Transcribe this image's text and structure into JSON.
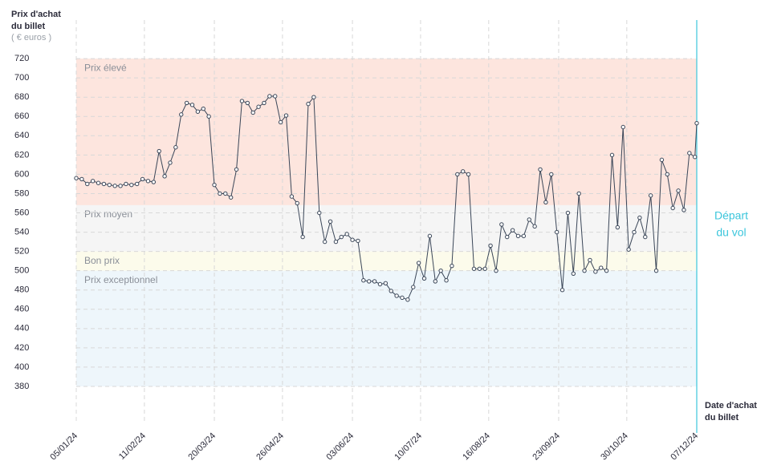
{
  "chart_data": {
    "type": "line",
    "title": [
      "Prix d'achat",
      "du billet"
    ],
    "subtitle": "( € euros )",
    "x_label": [
      "Date d'achat",
      "du billet"
    ],
    "color": "#3a4658",
    "ylim": [
      375,
      760
    ],
    "yticks": [
      380,
      400,
      420,
      440,
      460,
      480,
      500,
      520,
      540,
      560,
      580,
      600,
      620,
      640,
      660,
      680,
      700,
      720
    ],
    "xlim": [
      "05/01/24",
      "07/12/24"
    ],
    "xticks": [
      "05/01/24",
      "11/02/24",
      "20/03/24",
      "26/04/24",
      "03/06/24",
      "10/07/24",
      "16/08/24",
      "23/09/24",
      "30/10/24",
      "07/12/24"
    ],
    "grid": true,
    "bands": [
      {
        "label": "Prix élevé",
        "from": 568,
        "to": 720,
        "color": "#fde5de"
      },
      {
        "label": "Prix moyen",
        "from": 520,
        "to": 568,
        "color": "#f5f5f5"
      },
      {
        "label": "Bon prix",
        "from": 500,
        "to": 520,
        "color": "#fcfbeb"
      },
      {
        "label": "Prix exceptionnel",
        "from": 380,
        "to": 500,
        "color": "#eef6fb"
      }
    ],
    "departure": {
      "date": "07/12/24",
      "label": [
        "Départ",
        "du vol"
      ],
      "color": "#3cc6dc"
    },
    "x": [
      "05/01/24",
      "08/01/24",
      "11/01/24",
      "14/01/24",
      "17/01/24",
      "20/01/24",
      "23/01/24",
      "26/01/24",
      "29/01/24",
      "01/02/24",
      "04/02/24",
      "07/02/24",
      "10/02/24",
      "13/02/24",
      "16/02/24",
      "19/02/24",
      "22/02/24",
      "25/02/24",
      "28/02/24",
      "02/03/24",
      "05/03/24",
      "08/03/24",
      "11/03/24",
      "14/03/24",
      "17/03/24",
      "20/03/24",
      "23/03/24",
      "26/03/24",
      "29/03/24",
      "01/04/24",
      "04/04/24",
      "07/04/24",
      "10/04/24",
      "13/04/24",
      "16/04/24",
      "19/04/24",
      "22/04/24",
      "25/04/24",
      "28/04/24",
      "01/05/24",
      "04/05/24",
      "07/05/24",
      "10/05/24",
      "13/05/24",
      "16/05/24",
      "19/05/24",
      "22/05/24",
      "25/05/24",
      "28/05/24",
      "31/05/24",
      "03/06/24",
      "06/06/24",
      "09/06/24",
      "12/06/24",
      "15/06/24",
      "18/06/24",
      "21/06/24",
      "24/06/24",
      "27/06/24",
      "30/06/24",
      "03/07/24",
      "06/07/24",
      "09/07/24",
      "12/07/24",
      "15/07/24",
      "18/07/24",
      "21/07/24",
      "24/07/24",
      "27/07/24",
      "30/07/24",
      "02/08/24",
      "05/08/24",
      "08/08/24",
      "11/08/24",
      "14/08/24",
      "17/08/24",
      "20/08/24",
      "23/08/24",
      "26/08/24",
      "29/08/24",
      "01/09/24",
      "04/09/24",
      "07/09/24",
      "10/09/24",
      "13/09/24",
      "16/09/24",
      "19/09/24",
      "22/09/24",
      "25/09/24",
      "28/09/24",
      "01/10/24",
      "04/10/24",
      "07/10/24",
      "10/10/24",
      "13/10/24",
      "16/10/24",
      "19/10/24",
      "22/10/24",
      "25/10/24",
      "28/10/24",
      "31/10/24",
      "03/11/24",
      "06/11/24",
      "09/11/24",
      "12/11/24",
      "15/11/24",
      "18/11/24",
      "21/11/24",
      "24/11/24",
      "27/11/24",
      "30/11/24",
      "03/12/24",
      "06/12/24",
      "07/12/24"
    ],
    "values": [
      596,
      595,
      590,
      593,
      591,
      590,
      589,
      588,
      588,
      590,
      589,
      590,
      595,
      593,
      592,
      624,
      598,
      612,
      628,
      662,
      674,
      672,
      665,
      668,
      660,
      589,
      580,
      580,
      576,
      605,
      676,
      674,
      664,
      670,
      674,
      681,
      681,
      654,
      661,
      577,
      570,
      535,
      673,
      680,
      560,
      530,
      551,
      530,
      535,
      538,
      532,
      531,
      490,
      489,
      489,
      486,
      487,
      479,
      474,
      472,
      470,
      483,
      508,
      492,
      536,
      489,
      500,
      490,
      505,
      600,
      603,
      600,
      502,
      502,
      502,
      526,
      500,
      548,
      535,
      542,
      536,
      536,
      553,
      546,
      605,
      571,
      600,
      540,
      480,
      560,
      497,
      580,
      500,
      511,
      499,
      503,
      500,
      620,
      545,
      649,
      522,
      540,
      555,
      535,
      578,
      500,
      615,
      600,
      565,
      583,
      563,
      622,
      618,
      653
    ]
  }
}
